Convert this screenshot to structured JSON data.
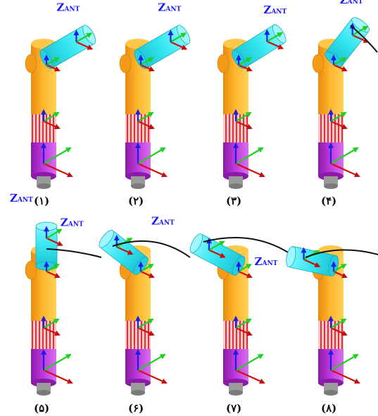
{
  "axis_label": {
    "main": "Z",
    "sub": "ANT"
  },
  "colors": {
    "antenna": "#33e6f0",
    "mast_orange": "#f7a21a",
    "mast_yellow": "#ffc03a",
    "stripe_red": "#e0303a",
    "stripe_pink": "#f6c8c8",
    "base_purple": "#b02ad0",
    "foot_gray": "#9a9a9a",
    "axis_x": "#d01010",
    "axis_y": "#20d020",
    "axis_z": "#1a20e8",
    "trajectory": "#111111"
  },
  "panels": [
    {
      "caption": "(۱)"
    },
    {
      "caption": "(۲)"
    },
    {
      "caption": "(۳)"
    },
    {
      "caption": "(۴)"
    },
    {
      "caption": "(۵)"
    },
    {
      "caption": "(۶)"
    },
    {
      "caption": "(۷)"
    },
    {
      "caption": "(۸)"
    }
  ]
}
